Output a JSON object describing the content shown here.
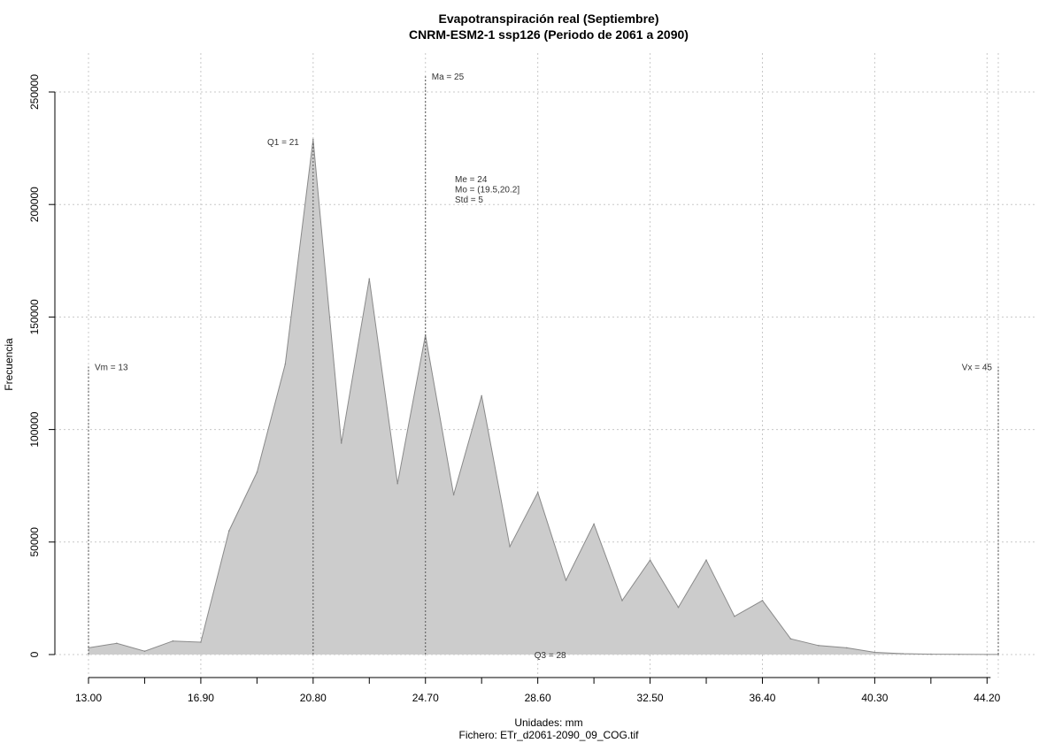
{
  "chart_data": {
    "type": "area",
    "title": "Evapotranspiración real (Septiembre)",
    "subtitle": "CNRM-ESM2-1 ssp126 (Periodo de 2061 a 2090)",
    "xlabel": "Unidades: mm",
    "file_label": "Fichero: ETr_d2061-2090_09_COG.tif",
    "ylabel": "Frecuencia",
    "xlim": [
      13.0,
      44.59
    ],
    "ylim": [
      0,
      250000
    ],
    "x_ticks": [
      "13.00",
      "14.95",
      "16.90",
      "18.85",
      "20.80",
      "22.75",
      "24.70",
      "26.65",
      "28.60",
      "30.55",
      "32.50",
      "34.45",
      "36.40",
      "38.35",
      "40.30",
      "42.25",
      "44.20"
    ],
    "y_ticks": [
      "0",
      "50000",
      "100000",
      "150000",
      "200000",
      "250000"
    ],
    "grid": true,
    "fill_color": "#cccccc",
    "line_color": "#8a8a8a",
    "x": [
      13.0,
      13.98,
      14.95,
      15.93,
      16.9,
      17.88,
      18.85,
      19.83,
      20.8,
      21.78,
      22.75,
      23.73,
      24.7,
      25.68,
      26.65,
      27.63,
      28.6,
      29.58,
      30.55,
      31.53,
      32.5,
      33.48,
      34.45,
      35.43,
      36.4,
      37.38,
      38.35,
      39.33,
      40.3,
      41.28,
      42.25,
      43.23,
      44.2,
      44.59
    ],
    "y": [
      3000,
      5000,
      1500,
      6000,
      5500,
      55000,
      81000,
      129000,
      229000,
      94000,
      167000,
      76000,
      142000,
      71000,
      115000,
      48000,
      72000,
      33000,
      58000,
      24000,
      42000,
      21000,
      42000,
      17000,
      24000,
      7000,
      4000,
      3000,
      1000,
      400,
      150,
      80,
      40,
      20
    ],
    "annotations": [
      {
        "label": "Vm = 13",
        "x": 13.0,
        "y": 128000,
        "line": true
      },
      {
        "label": "Q1 = 21",
        "x": 20.8,
        "y": 228000,
        "line": true
      },
      {
        "label": "Ma = 25",
        "x": 24.7,
        "y": 257000,
        "line": true
      },
      {
        "label": "Vx = 45",
        "x": 44.59,
        "y": 128000,
        "line": true
      },
      {
        "label": "Q3 = 28",
        "x": 28.6,
        "y": 0,
        "line": false
      }
    ],
    "stats": [
      "Me = 24",
      "Mo = (19.5,20.2]",
      "Std = 5"
    ]
  }
}
